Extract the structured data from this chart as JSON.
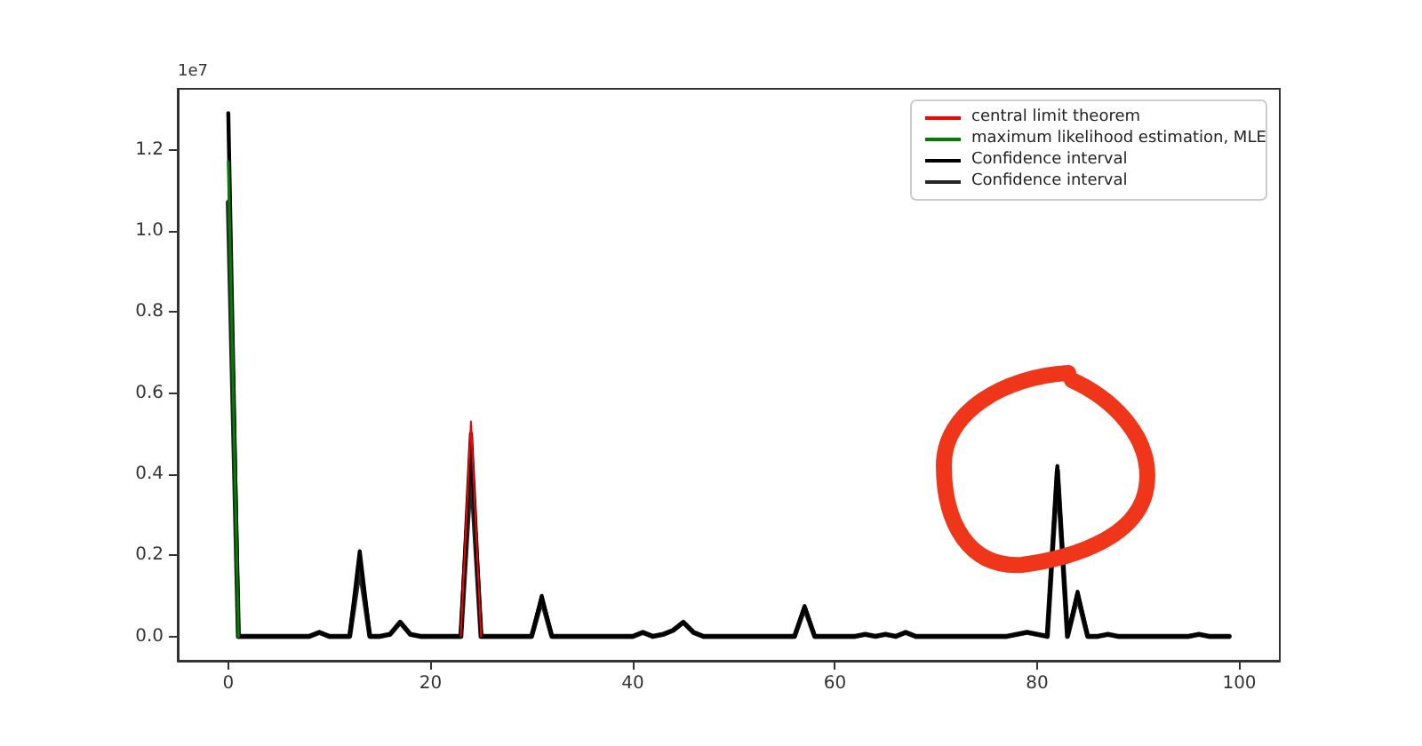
{
  "chart_data": {
    "type": "line",
    "annotations": [
      "1e7"
    ],
    "x": [
      0,
      1,
      2,
      3,
      4,
      5,
      6,
      7,
      8,
      9,
      10,
      11,
      12,
      13,
      14,
      15,
      16,
      17,
      18,
      19,
      20,
      21,
      22,
      23,
      24,
      25,
      26,
      27,
      28,
      29,
      30,
      31,
      32,
      33,
      34,
      35,
      36,
      37,
      38,
      39,
      40,
      41,
      42,
      43,
      44,
      45,
      46,
      47,
      48,
      49,
      50,
      51,
      52,
      53,
      54,
      55,
      56,
      57,
      58,
      59,
      60,
      61,
      62,
      63,
      64,
      65,
      66,
      67,
      68,
      69,
      70,
      71,
      72,
      73,
      74,
      75,
      76,
      77,
      78,
      79,
      80,
      81,
      82,
      83,
      84,
      85,
      86,
      87,
      88,
      89,
      90,
      91,
      92,
      93,
      94,
      95,
      96,
      97,
      98,
      99
    ],
    "series": [
      {
        "name": "central limit theorem",
        "color": "#ff0000",
        "values": [
          null,
          null,
          null,
          null,
          null,
          null,
          null,
          null,
          null,
          null,
          null,
          null,
          null,
          null,
          null,
          null,
          null,
          null,
          null,
          null,
          null,
          null,
          null,
          0,
          0.53,
          0,
          null,
          null,
          null,
          null,
          null,
          null,
          null,
          null,
          null,
          null,
          null,
          null,
          null,
          null,
          null,
          null,
          null,
          null,
          null,
          null,
          null,
          null,
          null,
          null,
          null,
          null,
          null,
          null,
          null,
          null,
          null,
          null,
          null,
          null,
          null,
          null,
          null,
          null,
          null,
          null,
          null,
          null,
          null,
          null,
          null,
          null,
          null,
          null,
          null,
          null,
          null,
          null,
          null,
          null,
          null,
          null,
          null,
          null,
          null,
          null,
          null,
          null,
          null,
          null,
          null,
          null,
          null,
          null,
          null,
          null,
          null,
          null,
          null,
          null
        ]
      },
      {
        "name": "maximum likelihood estimation, MLE",
        "color": "#008000",
        "values": [
          1.17,
          0,
          null,
          null,
          null,
          null,
          null,
          null,
          null,
          null,
          null,
          null,
          null,
          null,
          null,
          null,
          null,
          null,
          null,
          null,
          null,
          null,
          null,
          null,
          null,
          null,
          null,
          null,
          null,
          null,
          null,
          null,
          null,
          null,
          null,
          null,
          null,
          null,
          null,
          null,
          null,
          null,
          null,
          null,
          null,
          null,
          null,
          null,
          null,
          null,
          null,
          null,
          null,
          null,
          null,
          null,
          null,
          null,
          null,
          null,
          null,
          null,
          null,
          null,
          null,
          null,
          null,
          null,
          null,
          null,
          null,
          null,
          null,
          null,
          null,
          null,
          null,
          null,
          null,
          null,
          null,
          null,
          null,
          null,
          null,
          null,
          null,
          null,
          null,
          null,
          null,
          null,
          null,
          null,
          null,
          null,
          null,
          null,
          null,
          null
        ]
      },
      {
        "name": "Confidence interval",
        "color": "#000000",
        "values": [
          1.29,
          0,
          0,
          0,
          0,
          0,
          0,
          0,
          0,
          0.01,
          0,
          0,
          0,
          0.21,
          0,
          0,
          0.005,
          0.035,
          0.005,
          0,
          0,
          0,
          0,
          0,
          0.5,
          0,
          0,
          0,
          0,
          0,
          0,
          0.1,
          0,
          0,
          0,
          0,
          0,
          0,
          0,
          0,
          0,
          0.01,
          0,
          0.005,
          0.015,
          0.035,
          0.01,
          0,
          0,
          0,
          0,
          0,
          0,
          0,
          0,
          0,
          0,
          0.075,
          0,
          0,
          0,
          0,
          0,
          0.005,
          0,
          0.005,
          0,
          0.01,
          0,
          0,
          0,
          0,
          0,
          0,
          0,
          0,
          0,
          0,
          0.005,
          0.01,
          0.005,
          0,
          0.42,
          0,
          0.11,
          0,
          0,
          0.005,
          0,
          0,
          0,
          0,
          0,
          0,
          0,
          0,
          0.005,
          0,
          0,
          0
        ]
      },
      {
        "name": "Confidence interval",
        "color": "#262626",
        "values": [
          1.07,
          0,
          0,
          0,
          0,
          0,
          0,
          0,
          0,
          0.01,
          0,
          0,
          0,
          0.17,
          0,
          0,
          0.005,
          0.035,
          0.005,
          0,
          0,
          0,
          0,
          0,
          0.42,
          0,
          0,
          0,
          0,
          0,
          0,
          0.09,
          0,
          0,
          0,
          0,
          0,
          0,
          0,
          0,
          0,
          0.01,
          0,
          0.005,
          0.015,
          0.035,
          0.01,
          0,
          0,
          0,
          0,
          0,
          0,
          0,
          0,
          0,
          0,
          0.07,
          0,
          0,
          0,
          0,
          0,
          0.005,
          0,
          0.005,
          0,
          0.01,
          0,
          0,
          0,
          0,
          0,
          0,
          0,
          0,
          0,
          0,
          0.005,
          0.01,
          0.005,
          0,
          0.41,
          0,
          0.1,
          0,
          0,
          0.005,
          0,
          0,
          0,
          0,
          0,
          0,
          0,
          0,
          0.005,
          0,
          0,
          0
        ]
      }
    ],
    "xlim": [
      -5,
      104
    ],
    "xticks": [
      0,
      20,
      40,
      60,
      80,
      100
    ],
    "ylim": [
      -0.06,
      1.35
    ],
    "yticks": [
      {
        "value": 0,
        "label": "0.0"
      },
      {
        "value": 0.2,
        "label": "0.2"
      },
      {
        "value": 0.4,
        "label": "0.4"
      },
      {
        "value": 0.6,
        "label": "0.6"
      },
      {
        "value": 0.8,
        "label": "0.8"
      },
      {
        "value": 1.0,
        "label": "1.0"
      },
      {
        "value": 1.2,
        "label": "1.2"
      }
    ],
    "grid": false,
    "legend": "top right",
    "marker": "none",
    "line_style": "solid"
  }
}
